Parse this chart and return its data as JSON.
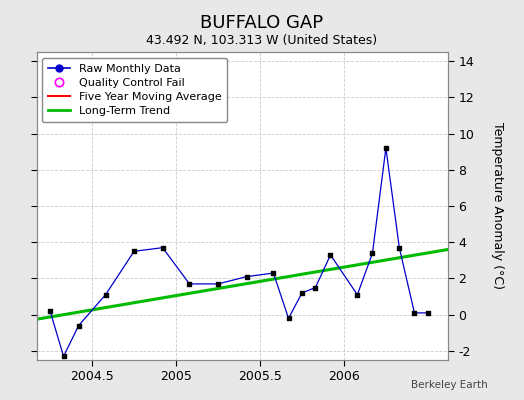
{
  "title": "BUFFALO GAP",
  "subtitle": "43.492 N, 103.313 W (United States)",
  "ylabel": "Temperature Anomaly (°C)",
  "credit": "Berkeley Earth",
  "xlim": [
    2004.17,
    2006.62
  ],
  "ylim": [
    -2.5,
    14.5
  ],
  "yticks": [
    -2,
    0,
    2,
    4,
    6,
    8,
    10,
    12,
    14
  ],
  "xticks": [
    2004.5,
    2005.0,
    2005.5,
    2006.0
  ],
  "xticklabels": [
    "2004.5",
    "2005",
    "2005.5",
    "2006"
  ],
  "bg_color": "#e8e8e8",
  "plot_bg_color": "#ffffff",
  "raw_x": [
    2004.25,
    2004.33,
    2004.42,
    2004.58,
    2004.75,
    2004.92,
    2005.08,
    2005.25,
    2005.42,
    2005.58,
    2005.67,
    2005.75,
    2005.83,
    2005.92,
    2006.08,
    2006.17,
    2006.25,
    2006.33,
    2006.42,
    2006.5
  ],
  "raw_y": [
    0.2,
    -2.3,
    -0.6,
    1.1,
    3.5,
    3.7,
    1.7,
    1.7,
    2.1,
    2.3,
    -0.2,
    1.2,
    1.5,
    3.3,
    1.1,
    3.4,
    9.2,
    3.7,
    0.1,
    0.1
  ],
  "trend_x": [
    2004.17,
    2006.62
  ],
  "trend_y": [
    -0.25,
    3.6
  ],
  "raw_color": "#0000cc",
  "raw_marker_color": "#000000",
  "trend_color": "#00bb00",
  "ma_color": "#ff0000",
  "title_fontsize": 13,
  "subtitle_fontsize": 9,
  "tick_fontsize": 9,
  "ylabel_fontsize": 9
}
